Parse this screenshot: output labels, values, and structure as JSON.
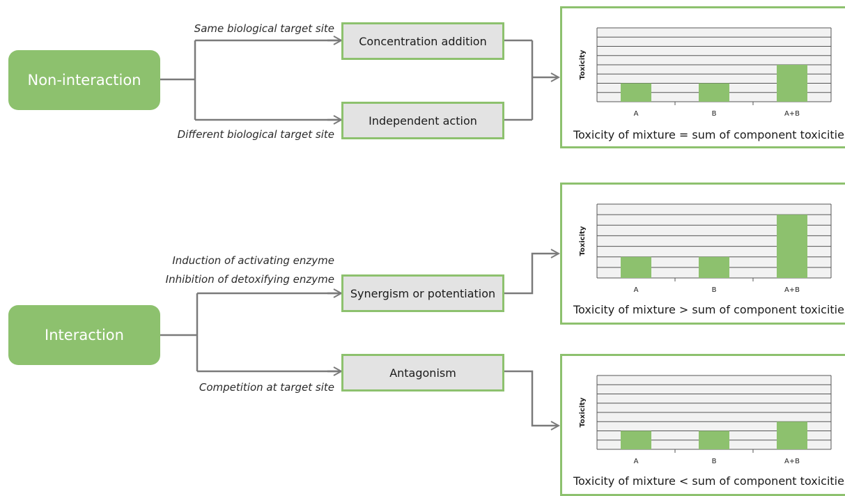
{
  "roots": [
    {
      "id": "non-interaction",
      "label": "Non-interaction"
    },
    {
      "id": "interaction",
      "label": "Interaction"
    }
  ],
  "mechanisms": [
    {
      "id": "concentration-addition",
      "label": "Concentration addition",
      "condition": "Same biological target site"
    },
    {
      "id": "independent-action",
      "label": "Independent action",
      "condition": "Different biological target site"
    },
    {
      "id": "synergism",
      "label": "Synergism or potentiation",
      "condition_lines": [
        "Induction of activating enzyme",
        "Inhibition of detoxifying enzyme"
      ]
    },
    {
      "id": "antagonism",
      "label": "Antagonism",
      "condition": "Competition at target site"
    }
  ],
  "colors": {
    "accent": "#8dc16e",
    "box_fill": "#e3e3e3",
    "connector": "#7a7a7a",
    "chart_bg": "#f2f2f2"
  },
  "chart_data": [
    {
      "type": "bar",
      "categories": [
        "A",
        "B",
        "A+B"
      ],
      "values": [
        2,
        2,
        4
      ],
      "ylabel": "Toxicity",
      "ylim": [
        0,
        8
      ],
      "grid": true,
      "caption": "Toxicity of mixture = sum of component toxicities"
    },
    {
      "type": "bar",
      "categories": [
        "A",
        "B",
        "A+B"
      ],
      "values": [
        2,
        2,
        6
      ],
      "ylabel": "Toxicity",
      "ylim": [
        0,
        7
      ],
      "grid": true,
      "caption": "Toxicity of mixture > sum of component toxicities"
    },
    {
      "type": "bar",
      "categories": [
        "A",
        "B",
        "A+B"
      ],
      "values": [
        2,
        2,
        3
      ],
      "ylabel": "Toxicity",
      "ylim": [
        0,
        8
      ],
      "grid": true,
      "caption": "Toxicity of mixture < sum of component toxicities"
    }
  ]
}
